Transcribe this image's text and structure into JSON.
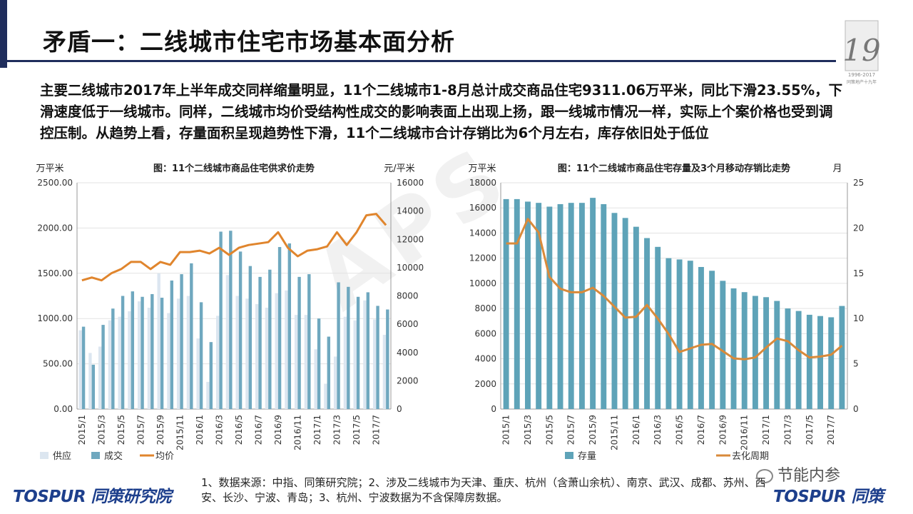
{
  "page": {
    "title": "矛盾一：二线城市住宅市场基本面分析",
    "summary": "主要二线城市2017年上半年成交同样缩量明显，11个二线城市1-8月总计成交商品住宅9311.06万平米，同比下滑23.55%，下滑速度低于一线城市。同样，二线城市均价受结构性成交的影响表面上出现上扬，跟一线城市情况一样，实际上个案价格也受到调控压制。从趋势上看，存量面积呈现趋势性下滑，11个二线城市合计存销比为6个月左右，库存依旧处于低位",
    "footnote": "1、数据来源：中指、同策研究院；2、涉及二线城市为天津、重庆、杭州（含萧山余杭）、南京、武汉、成都、苏州、西安、长沙、宁波、青岛；3、杭州、宁波数据为不含保障房数据。",
    "logo_left": "TOSPUR 同策研究院",
    "logo_right": "TOSPUR 同策",
    "wechat": "节能内参",
    "anniv_top": "1996-2017",
    "anniv_bottom": "同策地产十九年",
    "watermark": "APS"
  },
  "colors": {
    "supply": "#dce6f0",
    "deal": "#6fa8bf",
    "price": "#e0852d",
    "inventory": "#5ea3b8",
    "ratio": "#d98a3a",
    "navy": "#1f2d5c"
  },
  "chart_data": [
    {
      "type": "bar",
      "title": "图：11个二线城市商品住宅供求价走势",
      "y1_unit": "万平米",
      "y2_unit": "元/平米",
      "ylim": [
        0,
        2500
      ],
      "y2lim": [
        0,
        16000
      ],
      "y_ticks": [
        "0.00",
        "500.00",
        "1000.00",
        "1500.00",
        "2000.00",
        "2500.00"
      ],
      "y2_ticks": [
        "0",
        "2000",
        "4000",
        "6000",
        "8000",
        "10000",
        "12000",
        "14000",
        "16000"
      ],
      "categories": [
        "2015/1",
        "2015/2",
        "2015/3",
        "2015/4",
        "2015/5",
        "2015/6",
        "2015/7",
        "2015/8",
        "2015/9",
        "2015/10",
        "2015/11",
        "2015/12",
        "2016/1",
        "2016/2",
        "2016/3",
        "2016/4",
        "2016/5",
        "2016/6",
        "2016/7",
        "2016/8",
        "2016/9",
        "2016/10",
        "2016/11",
        "2016/12",
        "2017/1",
        "2017/2",
        "2017/3",
        "2017/4",
        "2017/5",
        "2017/6",
        "2017/7",
        "2017/8"
      ],
      "x_tick_labels": [
        "2015/1",
        "2015/3",
        "2015/5",
        "2015/7",
        "2015/9",
        "2015/11",
        "2016/1",
        "2016/3",
        "2016/5",
        "2016/7",
        "2016/9",
        "2016/11",
        "2017/1",
        "2017/3",
        "2017/5",
        "2017/7"
      ],
      "series": [
        {
          "name": "供应",
          "kind": "bar",
          "axis": "left",
          "values": [
            870,
            620,
            690,
            980,
            1020,
            1080,
            1190,
            1120,
            1500,
            1060,
            1220,
            1250,
            780,
            300,
            1030,
            1480,
            1250,
            1220,
            1160,
            1120,
            1280,
            1310,
            1040,
            1040,
            660,
            280,
            580,
            1020,
            980,
            1200,
            990,
            820
          ]
        },
        {
          "name": "成交",
          "kind": "bar",
          "axis": "left",
          "values": [
            910,
            490,
            930,
            1110,
            1250,
            1300,
            1240,
            1270,
            1230,
            1420,
            1490,
            1610,
            1180,
            740,
            1960,
            1970,
            1740,
            1580,
            1460,
            1540,
            1790,
            1830,
            1460,
            1490,
            1000,
            800,
            1400,
            1350,
            1240,
            1290,
            1140,
            1100
          ]
        },
        {
          "name": "均价",
          "kind": "line",
          "axis": "right",
          "values": [
            9100,
            9300,
            9100,
            9600,
            9900,
            10400,
            10400,
            9900,
            10400,
            10200,
            11100,
            11100,
            11200,
            11000,
            11400,
            10900,
            11400,
            11600,
            11700,
            11800,
            12500,
            11400,
            10800,
            11200,
            11300,
            11500,
            12500,
            11600,
            12500,
            13700,
            13800,
            13000
          ]
        }
      ],
      "legend": [
        "供应",
        "成交",
        "均价"
      ],
      "legend_position": "bottom"
    },
    {
      "type": "bar",
      "title": "图：11个二线城市商品住宅存量及3个月移动存销比走势",
      "y1_unit": "万平米",
      "y2_unit": "月",
      "ylim": [
        0,
        18000
      ],
      "y2lim": [
        0,
        25
      ],
      "y_ticks": [
        "0",
        "2000",
        "4000",
        "6000",
        "8000",
        "10000",
        "12000",
        "14000",
        "16000",
        "18000"
      ],
      "y2_ticks": [
        "0",
        "5",
        "10",
        "15",
        "20",
        "25"
      ],
      "categories": [
        "2015/1",
        "2015/2",
        "2015/3",
        "2015/4",
        "2015/5",
        "2015/6",
        "2015/7",
        "2015/8",
        "2015/9",
        "2015/10",
        "2015/11",
        "2015/12",
        "2016/1",
        "2016/2",
        "2016/3",
        "2016/4",
        "2016/5",
        "2016/6",
        "2016/7",
        "2016/8",
        "2016/9",
        "2016/10",
        "2016/11",
        "2016/12",
        "2017/1",
        "2017/2",
        "2017/3",
        "2017/4",
        "2017/5",
        "2017/6",
        "2017/7",
        "2017/8"
      ],
      "x_tick_labels": [
        "2015/1",
        "2015/3",
        "2015/5",
        "2015/7",
        "2015/9",
        "2015/11",
        "2016/1",
        "2016/3",
        "2016/5",
        "2016/7",
        "2016/9",
        "2016/11",
        "2017/1",
        "2017/3",
        "2017/5",
        "2017/7"
      ],
      "series": [
        {
          "name": "存量",
          "kind": "bar",
          "axis": "left",
          "values": [
            16700,
            16700,
            16500,
            16400,
            16100,
            16300,
            16400,
            16400,
            16800,
            16300,
            15600,
            15200,
            14500,
            13600,
            12900,
            12000,
            11900,
            11800,
            11300,
            11000,
            10200,
            9600,
            9300,
            9000,
            8900,
            8600,
            8000,
            7800,
            7500,
            7400,
            7300,
            8200
          ]
        },
        {
          "name": "去化周期",
          "kind": "line",
          "axis": "right",
          "values": [
            18.3,
            18.3,
            21.0,
            19.5,
            14.6,
            13.3,
            12.9,
            12.9,
            13.4,
            12.5,
            11.3,
            10.1,
            10.2,
            11.5,
            10.0,
            8.3,
            6.3,
            6.7,
            7.1,
            7.2,
            6.4,
            5.6,
            5.5,
            5.7,
            6.8,
            7.8,
            7.5,
            6.5,
            5.7,
            5.8,
            6.0,
            7.0
          ]
        }
      ],
      "legend": [
        "存量",
        "去化周期"
      ],
      "legend_position": "bottom"
    }
  ]
}
